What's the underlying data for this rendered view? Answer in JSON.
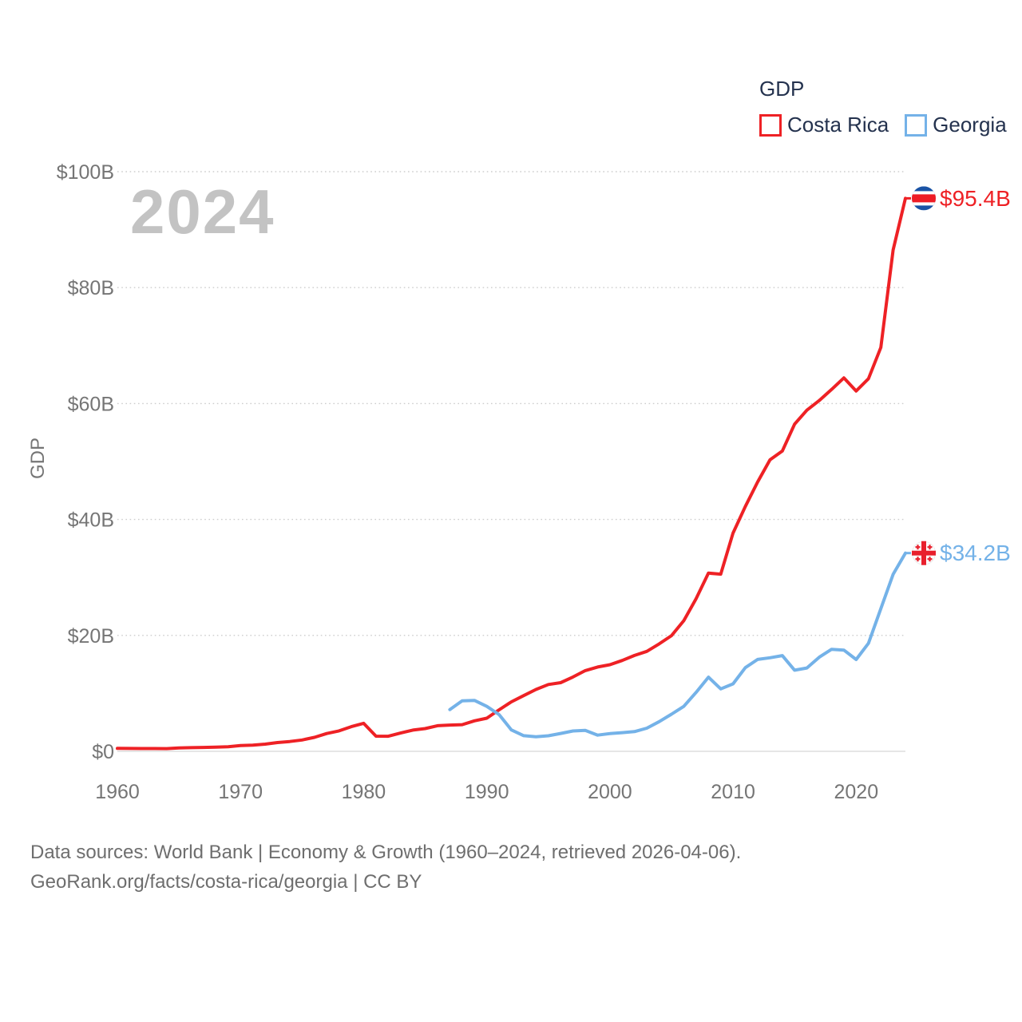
{
  "legend": {
    "title": "GDP",
    "items": [
      {
        "label": "Costa Rica",
        "color": "#ee2125"
      },
      {
        "label": "Georgia",
        "color": "#74b2e8"
      }
    ]
  },
  "watermark": "2024",
  "y_axis_title": "GDP",
  "footer": {
    "line1": "Data sources: World Bank | Economy & Growth (1960–2024, retrieved 2026-04-06).",
    "line2": "GeoRank.org/facts/costa-rica/georgia | CC BY"
  },
  "chart_data": {
    "type": "line",
    "title": "GDP",
    "ylabel": "GDP",
    "xlabel": "",
    "ylim": [
      0,
      100
    ],
    "xlim": [
      1960,
      2024
    ],
    "grid": true,
    "legend_position": "top-right",
    "y_tick_values": [
      0,
      20,
      40,
      60,
      80,
      100
    ],
    "y_tick_labels": [
      "$0",
      "$20B",
      "$40B",
      "$60B",
      "$80B",
      "$100B"
    ],
    "x_tick_values": [
      1960,
      1970,
      1980,
      1990,
      2000,
      2010,
      2020
    ],
    "x_tick_labels": [
      "1960",
      "1970",
      "1980",
      "1990",
      "2000",
      "2010",
      "2020"
    ],
    "series": [
      {
        "name": "Costa Rica",
        "color": "#ee2125",
        "flag": "costa-rica",
        "start_year": 1960,
        "end_year": 2024,
        "end_label": "$95.4B",
        "values": [
          0.51,
          0.49,
          0.48,
          0.48,
          0.47,
          0.59,
          0.64,
          0.68,
          0.73,
          0.8,
          0.99,
          1.08,
          1.24,
          1.52,
          1.7,
          1.96,
          2.41,
          3.07,
          3.52,
          4.26,
          4.83,
          2.62,
          2.61,
          3.15,
          3.67,
          3.92,
          4.42,
          4.53,
          4.6,
          5.26,
          5.72,
          7.16,
          8.54,
          9.62,
          10.67,
          11.53,
          11.84,
          12.83,
          13.93,
          14.54,
          14.95,
          15.68,
          16.54,
          17.25,
          18.54,
          19.96,
          22.53,
          26.32,
          30.74,
          30.56,
          37.66,
          42.25,
          46.47,
          50.29,
          51.8,
          56.44,
          58.85,
          60.52,
          62.42,
          64.42,
          62.16,
          64.28,
          69.67,
          86.5,
          95.4
        ]
      },
      {
        "name": "Georgia",
        "color": "#74b2e8",
        "flag": "georgia",
        "start_year": 1987,
        "end_year": 2024,
        "end_label": "$34.2B",
        "values": [
          7.21,
          8.7,
          8.79,
          7.75,
          6.34,
          3.69,
          2.7,
          2.51,
          2.69,
          3.09,
          3.51,
          3.61,
          2.8,
          3.06,
          3.22,
          3.4,
          3.99,
          5.13,
          6.41,
          7.76,
          10.17,
          12.8,
          10.77,
          11.64,
          14.44,
          15.85,
          16.14,
          16.51,
          13.99,
          14.38,
          16.24,
          17.6,
          17.47,
          15.84,
          18.63,
          24.61,
          30.54,
          34.2
        ]
      }
    ]
  }
}
